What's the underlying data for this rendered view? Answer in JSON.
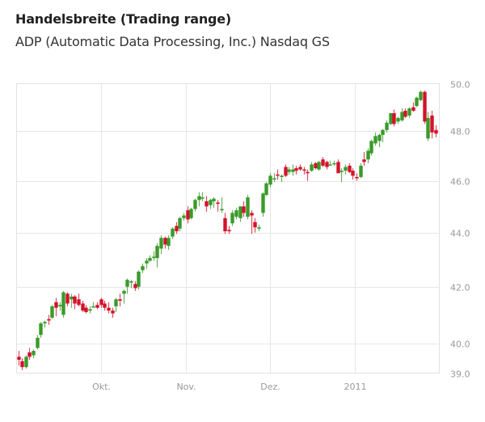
{
  "header": {
    "title": "Handelsbreite (Trading range)",
    "subtitle": "ADP (Automatic Data Processing, Inc.) Nasdaq GS"
  },
  "colors": {
    "up": "#3a9a2a",
    "down": "#d4122b",
    "grid": "#e6e6e6",
    "axis_text": "#999999"
  },
  "chart_data": {
    "type": "candlestick",
    "title": "Handelsbreite (Trading range)",
    "subtitle": "ADP (Automatic Data Processing, Inc.) Nasdaq GS",
    "xlabel": "",
    "ylabel": "",
    "ylim": [
      39.0,
      50.0
    ],
    "y_scale": "log",
    "grid": true,
    "y_axis_position": "right",
    "y_ticks": [
      "50.0",
      "48.0",
      "46.0",
      "44.0",
      "42.0",
      "40.0",
      "39.0"
    ],
    "x_ticks": [
      "Okt.",
      "Nov.",
      "Dez.",
      "2011"
    ],
    "candles": [
      [
        39.55,
        39.75,
        39.25,
        39.45
      ],
      [
        39.4,
        39.5,
        39.1,
        39.2
      ],
      [
        39.2,
        39.6,
        39.15,
        39.55
      ],
      [
        39.7,
        39.85,
        39.45,
        39.55
      ],
      [
        39.6,
        39.8,
        39.5,
        39.75
      ],
      [
        39.85,
        40.3,
        39.8,
        40.2
      ],
      [
        40.3,
        40.75,
        40.2,
        40.7
      ],
      [
        40.7,
        40.8,
        40.55,
        40.75
      ],
      [
        40.85,
        41.0,
        40.65,
        40.8
      ],
      [
        40.9,
        41.35,
        40.85,
        41.3
      ],
      [
        41.45,
        41.6,
        40.95,
        41.25
      ],
      [
        41.3,
        41.45,
        41.15,
        41.35
      ],
      [
        41.0,
        41.85,
        40.9,
        41.8
      ],
      [
        41.75,
        41.8,
        41.3,
        41.4
      ],
      [
        41.55,
        41.75,
        41.25,
        41.65
      ],
      [
        41.65,
        41.7,
        41.2,
        41.4
      ],
      [
        41.55,
        41.75,
        41.3,
        41.35
      ],
      [
        41.4,
        41.5,
        41.1,
        41.15
      ],
      [
        41.25,
        41.35,
        41.05,
        41.1
      ],
      [
        41.15,
        41.3,
        41.05,
        41.2
      ],
      [
        41.3,
        41.45,
        41.25,
        41.3
      ],
      [
        41.35,
        41.45,
        41.2,
        41.25
      ],
      [
        41.55,
        41.6,
        41.25,
        41.35
      ],
      [
        41.4,
        41.5,
        41.15,
        41.25
      ],
      [
        41.25,
        41.45,
        41.05,
        41.15
      ],
      [
        41.15,
        41.25,
        40.9,
        41.05
      ],
      [
        41.3,
        41.6,
        41.1,
        41.55
      ],
      [
        41.55,
        41.75,
        41.3,
        41.5
      ],
      [
        41.75,
        41.9,
        41.4,
        41.85
      ],
      [
        42.0,
        42.3,
        41.75,
        42.25
      ],
      [
        42.15,
        42.25,
        41.95,
        42.2
      ],
      [
        42.1,
        42.2,
        41.85,
        41.95
      ],
      [
        42.0,
        42.6,
        41.9,
        42.55
      ],
      [
        42.6,
        42.85,
        42.5,
        42.75
      ],
      [
        42.85,
        43.05,
        42.65,
        42.95
      ],
      [
        42.95,
        43.15,
        42.9,
        43.05
      ],
      [
        43.05,
        43.3,
        42.95,
        43.1
      ],
      [
        43.05,
        43.6,
        42.7,
        43.5
      ],
      [
        43.4,
        43.9,
        43.2,
        43.8
      ],
      [
        43.8,
        43.85,
        43.4,
        43.55
      ],
      [
        43.5,
        43.9,
        43.35,
        43.8
      ],
      [
        43.85,
        44.2,
        43.75,
        44.15
      ],
      [
        44.25,
        44.4,
        43.95,
        44.05
      ],
      [
        44.15,
        44.6,
        44.05,
        44.55
      ],
      [
        44.55,
        44.75,
        44.45,
        44.65
      ],
      [
        44.85,
        45.0,
        44.35,
        44.5
      ],
      [
        44.55,
        44.95,
        44.5,
        44.9
      ],
      [
        44.9,
        45.3,
        44.8,
        45.25
      ],
      [
        45.25,
        45.55,
        45.0,
        45.4
      ],
      [
        45.35,
        45.55,
        45.2,
        45.35
      ],
      [
        45.2,
        45.4,
        44.8,
        45.0
      ],
      [
        45.05,
        45.3,
        44.9,
        45.25
      ],
      [
        45.2,
        45.35,
        44.95,
        45.3
      ],
      [
        45.15,
        45.25,
        44.8,
        45.1
      ],
      [
        44.85,
        45.35,
        44.75,
        44.9
      ],
      [
        44.55,
        44.75,
        43.95,
        44.05
      ],
      [
        44.1,
        44.25,
        43.95,
        44.05
      ],
      [
        44.35,
        44.85,
        44.25,
        44.75
      ],
      [
        44.6,
        44.95,
        44.5,
        44.85
      ],
      [
        44.55,
        45.0,
        44.4,
        45.0
      ],
      [
        45.0,
        45.2,
        44.6,
        44.75
      ],
      [
        44.6,
        45.45,
        44.5,
        45.35
      ],
      [
        44.75,
        44.85,
        43.95,
        44.65
      ],
      [
        44.4,
        44.55,
        44.0,
        44.2
      ],
      [
        44.15,
        44.3,
        44.05,
        44.2
      ],
      [
        44.75,
        45.55,
        44.6,
        45.5
      ],
      [
        45.45,
        45.95,
        45.4,
        45.9
      ],
      [
        45.85,
        46.3,
        45.75,
        46.2
      ],
      [
        46.05,
        46.3,
        45.95,
        46.1
      ],
      [
        46.25,
        46.45,
        46.05,
        46.2
      ],
      [
        46.15,
        46.25,
        45.95,
        46.2
      ],
      [
        46.55,
        46.65,
        46.15,
        46.2
      ],
      [
        46.35,
        46.55,
        46.25,
        46.45
      ],
      [
        46.35,
        46.65,
        46.2,
        46.45
      ],
      [
        46.5,
        46.6,
        46.25,
        46.4
      ],
      [
        46.55,
        46.65,
        46.4,
        46.45
      ],
      [
        46.45,
        46.55,
        46.25,
        46.4
      ],
      [
        46.35,
        46.45,
        46.0,
        46.3
      ],
      [
        46.4,
        46.75,
        46.35,
        46.65
      ],
      [
        46.7,
        46.75,
        46.45,
        46.5
      ],
      [
        46.45,
        46.8,
        46.4,
        46.75
      ],
      [
        46.85,
        46.95,
        46.55,
        46.6
      ],
      [
        46.75,
        46.8,
        46.45,
        46.55
      ],
      [
        46.65,
        46.8,
        46.6,
        46.65
      ],
      [
        46.7,
        46.8,
        46.6,
        46.7
      ],
      [
        46.75,
        46.85,
        46.4,
        46.3
      ],
      [
        46.35,
        46.5,
        45.95,
        46.4
      ],
      [
        46.4,
        46.65,
        46.25,
        46.55
      ],
      [
        46.6,
        46.7,
        46.3,
        46.35
      ],
      [
        46.4,
        46.5,
        46.05,
        46.2
      ],
      [
        46.15,
        46.3,
        46.0,
        46.1
      ],
      [
        46.15,
        46.7,
        46.1,
        46.6
      ],
      [
        46.85,
        47.15,
        46.6,
        46.75
      ],
      [
        46.85,
        47.3,
        46.7,
        47.2
      ],
      [
        47.1,
        47.65,
        47.0,
        47.6
      ],
      [
        47.5,
        47.95,
        47.4,
        47.8
      ],
      [
        47.6,
        47.9,
        47.35,
        47.85
      ],
      [
        47.85,
        48.1,
        47.55,
        48.05
      ],
      [
        48.05,
        48.45,
        47.95,
        48.35
      ],
      [
        48.3,
        48.75,
        48.25,
        48.75
      ],
      [
        48.75,
        48.9,
        48.2,
        48.3
      ],
      [
        48.4,
        48.6,
        48.3,
        48.55
      ],
      [
        48.45,
        48.95,
        48.4,
        48.8
      ],
      [
        48.85,
        48.95,
        48.55,
        48.6
      ],
      [
        48.65,
        49.0,
        48.55,
        48.95
      ],
      [
        49.0,
        49.2,
        48.8,
        48.85
      ],
      [
        49.05,
        49.45,
        49.0,
        49.4
      ],
      [
        49.3,
        49.7,
        49.25,
        49.65
      ],
      [
        49.65,
        49.7,
        48.3,
        48.4
      ],
      [
        47.7,
        48.8,
        47.6,
        48.55
      ],
      [
        48.65,
        48.85,
        47.7,
        47.95
      ],
      [
        48.05,
        48.25,
        47.75,
        47.9
      ]
    ]
  }
}
